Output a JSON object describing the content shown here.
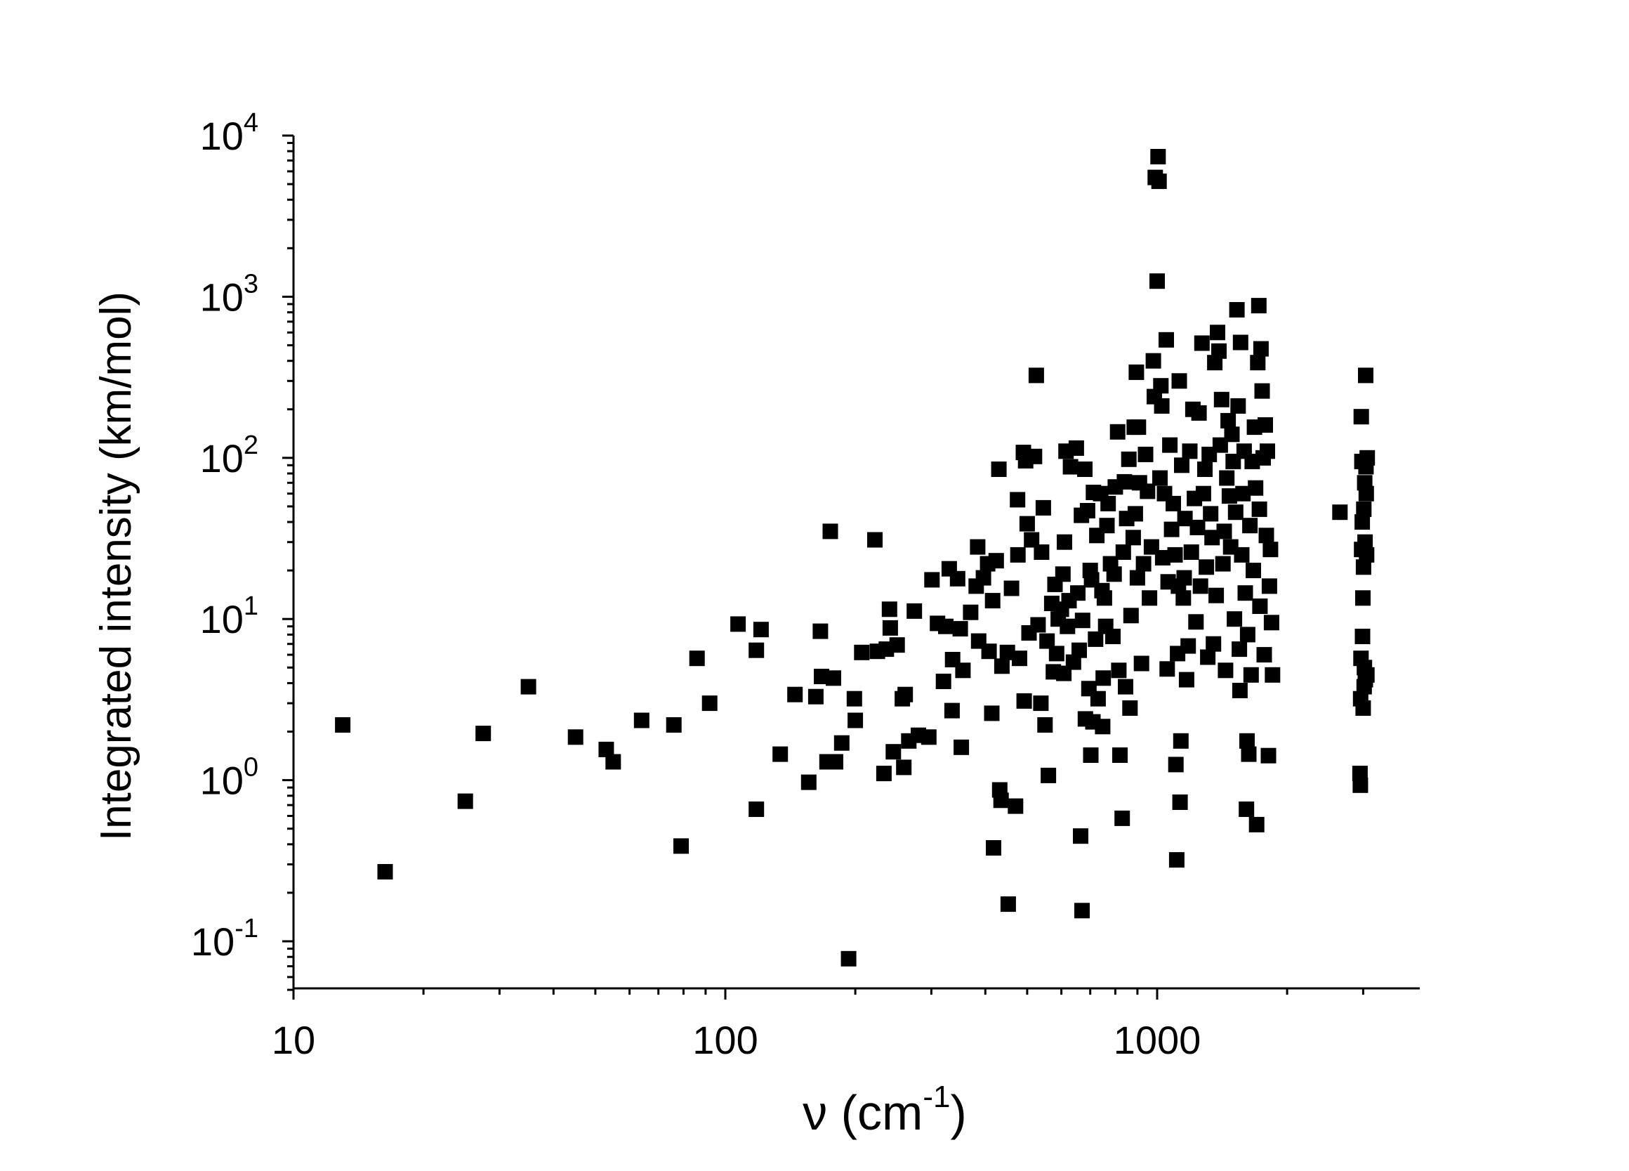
{
  "chart_data": {
    "type": "scatter",
    "marker": "filled-square",
    "marker_color": "#000000",
    "xlabel": "ν (cm",
    "xlabel_superscript": "-1",
    "xlabel_suffix": ")",
    "ylabel": "Integrated intensity (km/mol)",
    "x_scale": "log",
    "y_scale": "log",
    "xlim": [
      10,
      3500
    ],
    "ylim": [
      0.05,
      10000
    ],
    "x_tick_labels": [
      "10",
      "100",
      "1000"
    ],
    "y_tick_labels": [
      {
        "base": "10",
        "exp": "-1"
      },
      {
        "base": "10",
        "exp": "0"
      },
      {
        "base": "10",
        "exp": "1"
      },
      {
        "base": "10",
        "exp": "2"
      },
      {
        "base": "10",
        "exp": "3"
      },
      {
        "base": "10",
        "exp": "4"
      }
    ],
    "grid": false,
    "legend": "none",
    "points": [
      [
        13,
        2.2
      ],
      [
        16.3,
        0.27
      ],
      [
        25,
        0.74
      ],
      [
        27.5,
        1.95
      ],
      [
        35,
        3.8
      ],
      [
        45,
        1.85
      ],
      [
        53,
        1.55
      ],
      [
        55,
        1.3
      ],
      [
        64,
        2.35
      ],
      [
        76,
        2.2
      ],
      [
        79,
        0.39
      ],
      [
        86,
        5.7
      ],
      [
        92,
        3.0
      ],
      [
        107,
        9.3
      ],
      [
        118,
        0.66
      ],
      [
        118,
        6.4
      ],
      [
        121,
        8.6
      ],
      [
        134,
        1.45
      ],
      [
        145,
        3.4
      ],
      [
        156,
        0.97
      ],
      [
        162,
        3.3
      ],
      [
        166,
        8.4
      ],
      [
        167,
        4.4
      ],
      [
        172,
        1.3
      ],
      [
        175,
        35
      ],
      [
        178,
        4.3
      ],
      [
        180,
        1.3
      ],
      [
        186,
        1.7
      ],
      [
        193,
        0.078
      ],
      [
        199,
        3.2
      ],
      [
        200,
        2.35
      ],
      [
        207,
        6.2
      ],
      [
        222,
        31
      ],
      [
        225,
        6.3
      ],
      [
        233,
        1.1
      ],
      [
        236,
        6.5
      ],
      [
        240,
        11.5
      ],
      [
        241,
        8.8
      ],
      [
        245,
        1.5
      ],
      [
        250,
        6.9
      ],
      [
        257,
        3.2
      ],
      [
        259,
        1.2
      ],
      [
        261,
        3.4
      ],
      [
        266,
        1.75
      ],
      [
        274,
        11.2
      ],
      [
        280,
        1.9
      ],
      [
        296,
        1.85
      ],
      [
        301,
        17.5
      ],
      [
        310,
        9.4
      ],
      [
        320,
        4.1
      ],
      [
        324,
        9.0
      ],
      [
        330,
        20.5
      ],
      [
        335,
        2.7
      ],
      [
        336,
        5.6
      ],
      [
        345,
        17.8
      ],
      [
        350,
        8.7
      ],
      [
        352,
        1.6
      ],
      [
        355,
        4.8
      ],
      [
        370,
        11
      ],
      [
        381,
        16
      ],
      [
        384,
        28
      ],
      [
        386,
        7.3
      ],
      [
        396,
        18
      ],
      [
        405,
        22
      ],
      [
        408,
        6.3
      ],
      [
        414,
        2.6
      ],
      [
        416,
        13
      ],
      [
        418,
        0.38
      ],
      [
        424,
        23
      ],
      [
        430,
        85
      ],
      [
        432,
        0.87
      ],
      [
        435,
        0.75
      ],
      [
        437,
        5.1
      ],
      [
        450,
        6.2
      ],
      [
        452,
        0.17
      ],
      [
        460,
        15.5
      ],
      [
        470,
        0.69
      ],
      [
        475,
        55
      ],
      [
        476,
        25
      ],
      [
        480,
        5.7
      ],
      [
        490,
        108
      ],
      [
        492,
        3.1
      ],
      [
        496,
        96
      ],
      [
        500,
        39
      ],
      [
        505,
        8.2
      ],
      [
        512,
        31
      ],
      [
        520,
        102
      ],
      [
        525,
        325
      ],
      [
        530,
        9.2
      ],
      [
        538,
        3.0
      ],
      [
        540,
        26
      ],
      [
        545,
        49
      ],
      [
        550,
        2.2
      ],
      [
        556,
        7.3
      ],
      [
        560,
        1.07
      ],
      [
        570,
        12.5
      ],
      [
        575,
        4.7
      ],
      [
        580,
        16.4
      ],
      [
        585,
        6.1
      ],
      [
        590,
        10
      ],
      [
        600,
        11.5
      ],
      [
        605,
        19
      ],
      [
        608,
        4.6
      ],
      [
        610,
        30
      ],
      [
        615,
        110
      ],
      [
        620,
        9
      ],
      [
        625,
        13
      ],
      [
        630,
        88
      ],
      [
        640,
        5.4
      ],
      [
        650,
        115
      ],
      [
        655,
        14.5
      ],
      [
        660,
        6.4
      ],
      [
        665,
        0.45
      ],
      [
        668,
        44
      ],
      [
        670,
        0.155
      ],
      [
        672,
        9.8
      ],
      [
        680,
        85
      ],
      [
        682,
        2.4
      ],
      [
        690,
        47
      ],
      [
        695,
        3.7
      ],
      [
        700,
        20
      ],
      [
        702,
        1.43
      ],
      [
        705,
        17.5
      ],
      [
        710,
        2.3
      ],
      [
        712,
        61
      ],
      [
        720,
        7.5
      ],
      [
        725,
        33
      ],
      [
        730,
        3.2
      ],
      [
        740,
        60
      ],
      [
        745,
        15
      ],
      [
        748,
        2.15
      ],
      [
        750,
        4.3
      ],
      [
        755,
        13.5
      ],
      [
        760,
        9
      ],
      [
        765,
        38
      ],
      [
        770,
        52
      ],
      [
        780,
        22
      ],
      [
        790,
        7.8
      ],
      [
        795,
        19
      ],
      [
        800,
        66
      ],
      [
        810,
        145
      ],
      [
        815,
        4.8
      ],
      [
        820,
        1.43
      ],
      [
        830,
        0.58
      ],
      [
        835,
        26
      ],
      [
        840,
        71
      ],
      [
        845,
        3.8
      ],
      [
        850,
        42
      ],
      [
        860,
        98
      ],
      [
        865,
        2.8
      ],
      [
        870,
        10.5
      ],
      [
        880,
        32
      ],
      [
        885,
        155
      ],
      [
        890,
        45
      ],
      [
        895,
        340
      ],
      [
        900,
        18
      ],
      [
        905,
        155
      ],
      [
        910,
        70
      ],
      [
        920,
        5.3
      ],
      [
        930,
        22
      ],
      [
        940,
        105
      ],
      [
        950,
        62
      ],
      [
        960,
        13.5
      ],
      [
        970,
        28
      ],
      [
        980,
        400
      ],
      [
        985,
        240
      ],
      [
        990,
        5500
      ],
      [
        1000,
        1250
      ],
      [
        1005,
        7400
      ],
      [
        1010,
        5200
      ],
      [
        1015,
        75
      ],
      [
        1020,
        280
      ],
      [
        1025,
        210
      ],
      [
        1030,
        24
      ],
      [
        1040,
        60
      ],
      [
        1050,
        540
      ],
      [
        1055,
        4.9
      ],
      [
        1060,
        17
      ],
      [
        1070,
        120
      ],
      [
        1080,
        36
      ],
      [
        1090,
        52
      ],
      [
        1100,
        25
      ],
      [
        1105,
        1.25
      ],
      [
        1110,
        0.32
      ],
      [
        1115,
        6.1
      ],
      [
        1120,
        16
      ],
      [
        1125,
        300
      ],
      [
        1130,
        0.73
      ],
      [
        1135,
        1.75
      ],
      [
        1140,
        90
      ],
      [
        1150,
        13.5
      ],
      [
        1155,
        18
      ],
      [
        1160,
        42
      ],
      [
        1170,
        4.2
      ],
      [
        1180,
        6.8
      ],
      [
        1190,
        110
      ],
      [
        1200,
        26
      ],
      [
        1210,
        200
      ],
      [
        1220,
        56
      ],
      [
        1230,
        9.6
      ],
      [
        1240,
        37
      ],
      [
        1250,
        190
      ],
      [
        1260,
        16
      ],
      [
        1270,
        515
      ],
      [
        1280,
        60
      ],
      [
        1290,
        85
      ],
      [
        1300,
        21
      ],
      [
        1310,
        5.8
      ],
      [
        1320,
        105
      ],
      [
        1330,
        45
      ],
      [
        1340,
        32
      ],
      [
        1350,
        7
      ],
      [
        1360,
        390
      ],
      [
        1370,
        14
      ],
      [
        1380,
        600
      ],
      [
        1390,
        460
      ],
      [
        1400,
        120
      ],
      [
        1410,
        230
      ],
      [
        1420,
        22
      ],
      [
        1430,
        35
      ],
      [
        1440,
        4.8
      ],
      [
        1450,
        75
      ],
      [
        1460,
        170
      ],
      [
        1470,
        58
      ],
      [
        1480,
        28
      ],
      [
        1490,
        140
      ],
      [
        1500,
        95
      ],
      [
        1510,
        10
      ],
      [
        1520,
        46
      ],
      [
        1530,
        830
      ],
      [
        1540,
        210
      ],
      [
        1550,
        6.5
      ],
      [
        1555,
        3.6
      ],
      [
        1560,
        520
      ],
      [
        1570,
        25
      ],
      [
        1580,
        60
      ],
      [
        1590,
        110
      ],
      [
        1600,
        14.5
      ],
      [
        1610,
        0.66
      ],
      [
        1615,
        1.75
      ],
      [
        1620,
        8
      ],
      [
        1630,
        1.45
      ],
      [
        1640,
        38
      ],
      [
        1650,
        4.5
      ],
      [
        1660,
        95
      ],
      [
        1670,
        20
      ],
      [
        1680,
        155
      ],
      [
        1690,
        65
      ],
      [
        1700,
        0.53
      ],
      [
        1710,
        390
      ],
      [
        1720,
        880
      ],
      [
        1725,
        48
      ],
      [
        1730,
        12
      ],
      [
        1740,
        475
      ],
      [
        1750,
        260
      ],
      [
        1760,
        100
      ],
      [
        1770,
        6
      ],
      [
        1780,
        160
      ],
      [
        1790,
        33
      ],
      [
        1800,
        110
      ],
      [
        1810,
        1.42
      ],
      [
        1820,
        16
      ],
      [
        1830,
        27
      ],
      [
        1840,
        9.5
      ],
      [
        1850,
        4.5
      ],
      [
        2650,
        46
      ],
      [
        2950,
        1.1
      ],
      [
        2955,
        0.93
      ],
      [
        2960,
        3.2
      ],
      [
        2965,
        5.7
      ],
      [
        2970,
        180
      ],
      [
        2975,
        27
      ],
      [
        2980,
        95
      ],
      [
        2985,
        40
      ],
      [
        2990,
        7.8
      ],
      [
        2995,
        13.5
      ],
      [
        3000,
        2.8
      ],
      [
        3005,
        21
      ],
      [
        3010,
        48
      ],
      [
        3015,
        3.8
      ],
      [
        3020,
        5.0
      ],
      [
        3025,
        70
      ],
      [
        3030,
        30
      ],
      [
        3035,
        4.2
      ],
      [
        3040,
        325
      ],
      [
        3045,
        88
      ],
      [
        3050,
        60
      ],
      [
        3055,
        25
      ],
      [
        3060,
        4.5
      ],
      [
        3065,
        100
      ]
    ]
  }
}
